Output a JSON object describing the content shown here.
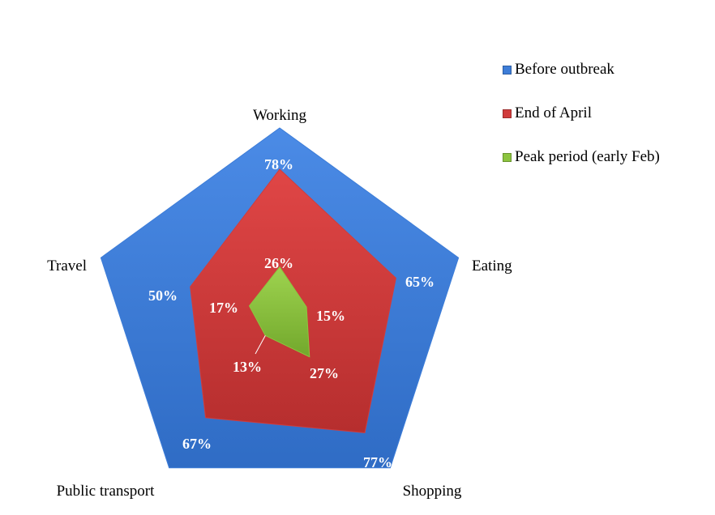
{
  "chart_data": {
    "type": "radar",
    "title": "",
    "categories": [
      "Working",
      "Eating",
      "Shopping",
      "Public transport",
      "Travel"
    ],
    "rmax": 100,
    "series": [
      {
        "name": "Before outbreak",
        "color": "#3d7dd8",
        "values": [
          100,
          100,
          100,
          100,
          100
        ],
        "labels": [
          "",
          "",
          "",
          "",
          ""
        ]
      },
      {
        "name": "End of April",
        "color": "#d13c3c",
        "values": [
          78,
          65,
          77,
          67,
          50
        ],
        "labels": [
          "78%",
          "65%",
          "77%",
          "67%",
          "50%"
        ]
      },
      {
        "name": "Peak period (early Feb)",
        "color": "#8cc43f",
        "values": [
          26,
          15,
          27,
          13,
          17
        ],
        "labels": [
          "26%",
          "15%",
          "27%",
          "13%",
          "17%"
        ]
      }
    ],
    "legend_position": "top-right"
  }
}
